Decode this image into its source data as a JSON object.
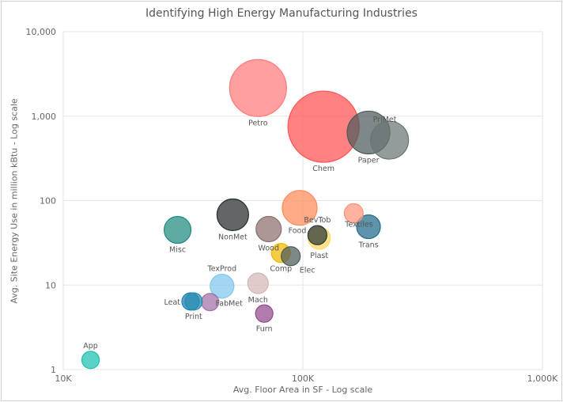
{
  "chart_data": {
    "type": "scatter",
    "title": "Identifying High Energy Manufacturing Industries",
    "xlabel": "Avg. Floor Area in SF - Log scale",
    "ylabel": "Avg. Site Energy Use in million kBtu - Log scale",
    "x_scale": "log",
    "y_scale": "log",
    "xlim": [
      10000,
      1000000
    ],
    "ylim": [
      1,
      10000
    ],
    "x_ticks": [
      "10K",
      "100K",
      "1,000K"
    ],
    "y_ticks": [
      "1",
      "10",
      "100",
      "1,000",
      "10,000"
    ],
    "grid": true,
    "points": [
      {
        "label": "Petro",
        "x": 65000,
        "y": 2150,
        "size": 36,
        "color": "#ff7a7a"
      },
      {
        "label": "Chem",
        "x": 122000,
        "y": 750,
        "size": 45,
        "color": "#ff5252"
      },
      {
        "label": "Paper",
        "x": 188000,
        "y": 640,
        "size": 27,
        "color": "#4e5a5a"
      },
      {
        "label": "PriMet",
        "x": 230000,
        "y": 520,
        "size": 24,
        "color": "#6a7575"
      },
      {
        "label": "Food",
        "x": 97000,
        "y": 82,
        "size": 22,
        "color": "#ff8b5a"
      },
      {
        "label": "NonMet",
        "x": 51000,
        "y": 68,
        "size": 20,
        "color": "#242d2d"
      },
      {
        "label": "Wood",
        "x": 72000,
        "y": 46,
        "size": 16,
        "color": "#8c6e6e"
      },
      {
        "label": "Misc",
        "x": 30000,
        "y": 45,
        "size": 17,
        "color": "#1e8a80"
      },
      {
        "label": "Textiles",
        "x": 163000,
        "y": 71,
        "size": 12,
        "color": "#ff9478"
      },
      {
        "label": "Trans",
        "x": 188000,
        "y": 49,
        "size": 15,
        "color": "#1f6b8c"
      },
      {
        "label": "BevTob",
        "x": 115000,
        "y": 39,
        "size": 12,
        "color": "#2a3636"
      },
      {
        "label": "Plast",
        "x": 117000,
        "y": 36,
        "size": 14,
        "color": "#ffd860"
      },
      {
        "label": "Comp",
        "x": 81000,
        "y": 24,
        "size": 12,
        "color": "#f0b800"
      },
      {
        "label": "Elec",
        "x": 89000,
        "y": 22,
        "size": 12,
        "color": "#4e5a5a"
      },
      {
        "label": "TexProd",
        "x": 46000,
        "y": 9.7,
        "size": 15,
        "color": "#7fc8ec"
      },
      {
        "label": "Mach",
        "x": 65000,
        "y": 10.5,
        "size": 13,
        "color": "#d4b6b6"
      },
      {
        "label": "Leat",
        "x": 34000,
        "y": 6.4,
        "size": 11,
        "color": "#1a7fb8"
      },
      {
        "label": "FabMet",
        "x": 41000,
        "y": 6.3,
        "size": 11,
        "color": "#a070a8"
      },
      {
        "label": "Print",
        "x": 35000,
        "y": 6.4,
        "size": 11,
        "color": "#2a8db0"
      },
      {
        "label": "Furn",
        "x": 69000,
        "y": 4.6,
        "size": 11,
        "color": "#904a8e"
      },
      {
        "label": "App",
        "x": 13000,
        "y": 1.3,
        "size": 11,
        "color": "#1dbfb0"
      }
    ]
  }
}
